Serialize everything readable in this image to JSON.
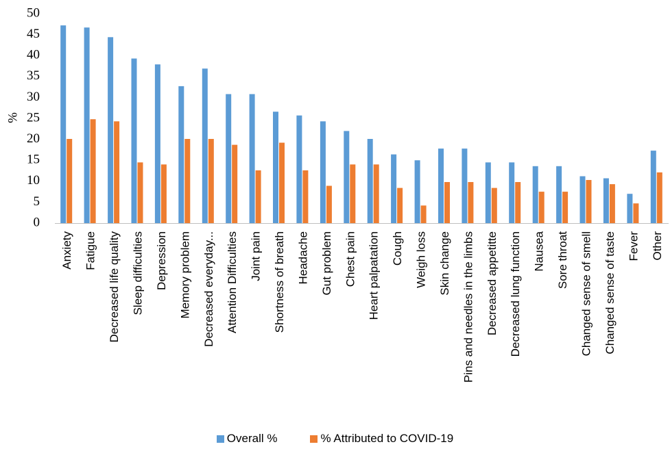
{
  "chart_data": {
    "type": "bar",
    "ylabel": "%",
    "xlabel": "",
    "ylim": [
      0,
      50
    ],
    "yticks": [
      0,
      5,
      10,
      15,
      20,
      25,
      30,
      35,
      40,
      45,
      50
    ],
    "grid": false,
    "legend_position": "bottom",
    "categories": [
      "Anxiety",
      "Fatigue",
      "Decreased life quality",
      "Sleep difficulties",
      "Depression",
      "Memory problem",
      "Decreased everyday...",
      "Attention Difficulties",
      "Joint pain",
      "Shortness of breath",
      "Headache",
      "Gut problem",
      "Chest pain",
      "Heart palpatation",
      "Cough",
      "Weigh loss",
      "Skin change",
      "Pins and needles in the limbs",
      "Decreased appetitte",
      "Decreased lung function",
      "Nausea",
      "Sore throat",
      "Changed sense of smell",
      "Changed sense of taste",
      "Fever",
      "Other"
    ],
    "series": [
      {
        "name": "Overall %",
        "color": "#5B9BD5",
        "values": [
          47.2,
          46.7,
          44.4,
          39.3,
          37.9,
          32.7,
          36.9,
          30.8,
          30.8,
          26.6,
          25.7,
          24.3,
          22.0,
          20.1,
          16.4,
          15.0,
          17.8,
          17.8,
          14.5,
          14.5,
          13.6,
          13.6,
          11.2,
          10.7,
          7.0,
          17.3
        ]
      },
      {
        "name": "% Attributed to COVID-19",
        "color": "#ED7D31",
        "values": [
          20.1,
          24.8,
          24.3,
          14.5,
          14.0,
          20.1,
          20.1,
          18.7,
          12.6,
          19.2,
          12.6,
          8.9,
          14.0,
          14.0,
          8.4,
          4.2,
          9.8,
          9.8,
          8.4,
          9.8,
          7.5,
          7.5,
          10.3,
          9.3,
          4.7,
          12.1
        ]
      }
    ]
  }
}
